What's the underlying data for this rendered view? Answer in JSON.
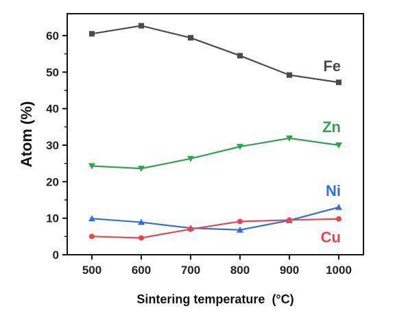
{
  "chart_data": {
    "type": "line",
    "title": "",
    "xlabel": "Sintering temperature",
    "xlabel_unit": "(°C)",
    "ylabel": "Atom (%)",
    "x": [
      500,
      600,
      700,
      800,
      900,
      1000
    ],
    "xlim": [
      450,
      1050
    ],
    "ylim": [
      0,
      66
    ],
    "xticks": [
      500,
      600,
      700,
      800,
      900,
      1000
    ],
    "yticks": [
      0,
      10,
      20,
      30,
      40,
      50,
      60
    ],
    "grid": false,
    "legend": "inline labels at right end of each series",
    "series": [
      {
        "name": "Fe",
        "values": [
          60.5,
          62.7,
          59.4,
          54.5,
          49.2,
          47.2
        ],
        "color": "#4a4a4a",
        "marker": "square"
      },
      {
        "name": "Zn",
        "values": [
          24.3,
          23.6,
          26.3,
          29.6,
          31.9,
          30.0
        ],
        "color": "#2fa34f",
        "marker": "triangle-down"
      },
      {
        "name": "Ni",
        "values": [
          9.9,
          8.9,
          7.3,
          6.8,
          9.4,
          13.0
        ],
        "color": "#2f6fe0",
        "marker": "triangle-up"
      },
      {
        "name": "Cu",
        "values": [
          5.0,
          4.6,
          7.0,
          9.1,
          9.5,
          9.8
        ],
        "color": "#e8454e",
        "marker": "circle"
      }
    ]
  }
}
